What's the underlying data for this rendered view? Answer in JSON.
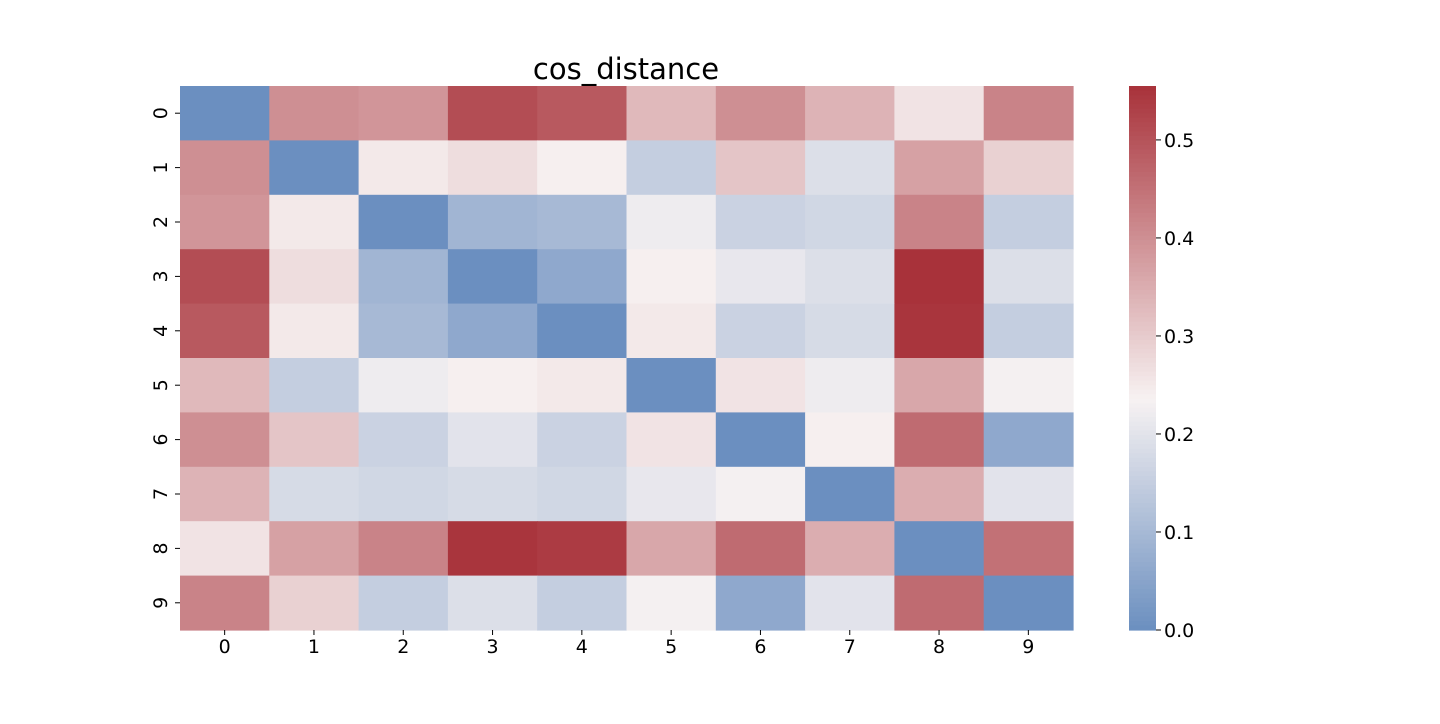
{
  "chart_data": {
    "type": "heatmap",
    "title": "cos_distance",
    "xlabel": "",
    "ylabel": "",
    "x_categories": [
      "0",
      "1",
      "2",
      "3",
      "4",
      "5",
      "6",
      "7",
      "8",
      "9"
    ],
    "y_categories": [
      "0",
      "1",
      "2",
      "3",
      "4",
      "5",
      "6",
      "7",
      "8",
      "9"
    ],
    "values": [
      [
        0.0,
        0.4,
        0.39,
        0.51,
        0.49,
        0.33,
        0.4,
        0.34,
        0.26,
        0.42
      ],
      [
        0.4,
        0.0,
        0.25,
        0.27,
        0.24,
        0.15,
        0.31,
        0.19,
        0.37,
        0.29
      ],
      [
        0.39,
        0.25,
        0.0,
        0.09,
        0.1,
        0.22,
        0.16,
        0.17,
        0.42,
        0.15
      ],
      [
        0.51,
        0.27,
        0.09,
        0.0,
        0.06,
        0.24,
        0.21,
        0.19,
        0.56,
        0.19
      ],
      [
        0.49,
        0.25,
        0.1,
        0.06,
        0.0,
        0.25,
        0.16,
        0.18,
        0.55,
        0.15
      ],
      [
        0.33,
        0.15,
        0.22,
        0.24,
        0.25,
        0.0,
        0.26,
        0.22,
        0.36,
        0.23
      ],
      [
        0.4,
        0.31,
        0.16,
        0.2,
        0.16,
        0.26,
        0.0,
        0.24,
        0.46,
        0.06
      ],
      [
        0.34,
        0.18,
        0.17,
        0.18,
        0.17,
        0.21,
        0.23,
        0.0,
        0.35,
        0.2
      ],
      [
        0.26,
        0.37,
        0.42,
        0.55,
        0.54,
        0.36,
        0.46,
        0.35,
        0.0,
        0.45
      ],
      [
        0.42,
        0.29,
        0.15,
        0.19,
        0.15,
        0.23,
        0.06,
        0.2,
        0.46,
        0.0
      ]
    ],
    "colorbar": {
      "vmin": 0.0,
      "vmax": 0.555,
      "ticks": [
        0.0,
        0.1,
        0.2,
        0.3,
        0.4,
        0.5
      ],
      "tick_labels": [
        "0.0",
        "0.1",
        "0.2",
        "0.3",
        "0.4",
        "0.5"
      ]
    },
    "colormap": {
      "low": "#6b8fc0",
      "mid": "#f7f2f2",
      "high": "#a8323a",
      "midpoint": 0.235
    },
    "grid": false,
    "legend": "colorbar-right"
  }
}
